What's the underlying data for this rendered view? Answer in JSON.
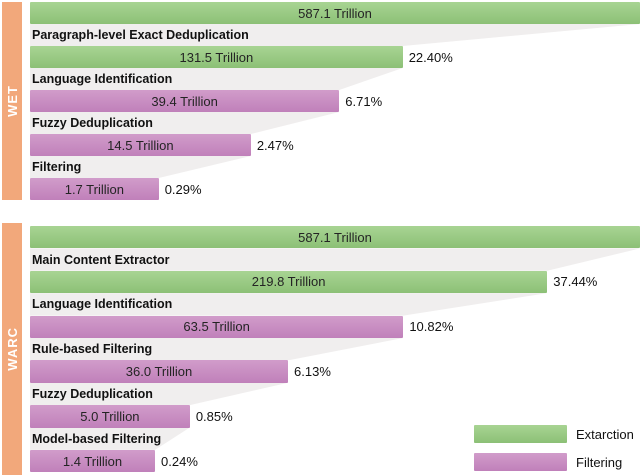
{
  "colors": {
    "extraction": "#8cc076",
    "extraction_light": "#a8d493",
    "filtering": "#c080ba",
    "filtering_light": "#d19cca",
    "sidebar": "#f2a87b",
    "funnel": "#f0eeee",
    "text": "#1c1c1c"
  },
  "sections": [
    {
      "name": "WET",
      "steps": [
        {
          "value": "587.1 Trillion",
          "type": "extraction",
          "width_pct": 100
        },
        {
          "label": "Paragraph-level Exact Deduplication",
          "value": "131.5 Trillion",
          "pct": "22.40%",
          "type": "extraction",
          "width_pct": 61.1
        },
        {
          "label": "Language Identification",
          "value": "39.4 Trillion",
          "pct": "6.71%",
          "type": "filtering",
          "width_pct": 50.7
        },
        {
          "label": "Fuzzy Deduplication",
          "value": "14.5 Trillion",
          "pct": "2.47%",
          "type": "filtering",
          "width_pct": 36.2
        },
        {
          "label": "Filtering",
          "value": "1.7 Trillion",
          "pct": "0.29%",
          "type": "filtering",
          "width_pct": 21.1
        }
      ]
    },
    {
      "name": "WARC",
      "steps": [
        {
          "value": "587.1 Trillion",
          "type": "extraction",
          "width_pct": 100
        },
        {
          "label": "Main Content Extractor",
          "value": "219.8 Trillion",
          "pct": "37.44%",
          "type": "extraction",
          "width_pct": 84.8
        },
        {
          "label": "Language Identification",
          "value": "63.5 Trillion",
          "pct": "10.82%",
          "type": "filtering",
          "width_pct": 61.2
        },
        {
          "label": "Rule-based Filtering",
          "value": "36.0 Trillion",
          "pct": "6.13%",
          "type": "filtering",
          "width_pct": 42.3
        },
        {
          "label": "Fuzzy Deduplication",
          "value": "5.0 Trillion",
          "pct": "0.85%",
          "type": "filtering",
          "width_pct": 26.2
        },
        {
          "label": "Model-based Filtering",
          "value": "1.4 Trillion",
          "pct": "0.24%",
          "type": "filtering",
          "width_pct": 20.5
        }
      ]
    }
  ],
  "legend": {
    "items": [
      {
        "label": "Extarction",
        "type": "extraction"
      },
      {
        "label": "Filtering",
        "type": "filtering"
      }
    ]
  },
  "chart_data": [
    {
      "type": "bar",
      "subtype": "funnel",
      "group": "WET",
      "categories": [
        "",
        "Paragraph-level Exact Deduplication",
        "Language Identification",
        "Fuzzy Deduplication",
        "Filtering"
      ],
      "values": [
        587.1,
        131.5,
        39.4,
        14.5,
        1.7
      ],
      "unit": "Trillion",
      "percent_remaining": [
        null,
        22.4,
        6.71,
        2.47,
        0.29
      ],
      "stage_type": [
        "extraction",
        "extraction",
        "filtering",
        "filtering",
        "filtering"
      ],
      "bar_width_pct_of_row": [
        100,
        61.1,
        50.7,
        36.2,
        21.1
      ],
      "orientation": "horizontal",
      "grid": false
    },
    {
      "type": "bar",
      "subtype": "funnel",
      "group": "WARC",
      "categories": [
        "",
        "Main Content Extractor",
        "Language Identification",
        "Rule-based Filtering",
        "Fuzzy Deduplication",
        "Model-based Filtering"
      ],
      "values": [
        587.1,
        219.8,
        63.5,
        36.0,
        5.0,
        1.4
      ],
      "unit": "Trillion",
      "percent_remaining": [
        null,
        37.44,
        10.82,
        6.13,
        0.85,
        0.24
      ],
      "stage_type": [
        "extraction",
        "extraction",
        "filtering",
        "filtering",
        "filtering",
        "filtering"
      ],
      "bar_width_pct_of_row": [
        100,
        84.8,
        61.2,
        42.3,
        26.2,
        20.5
      ],
      "orientation": "horizontal",
      "grid": false,
      "legend_position": "bottom-right"
    }
  ]
}
